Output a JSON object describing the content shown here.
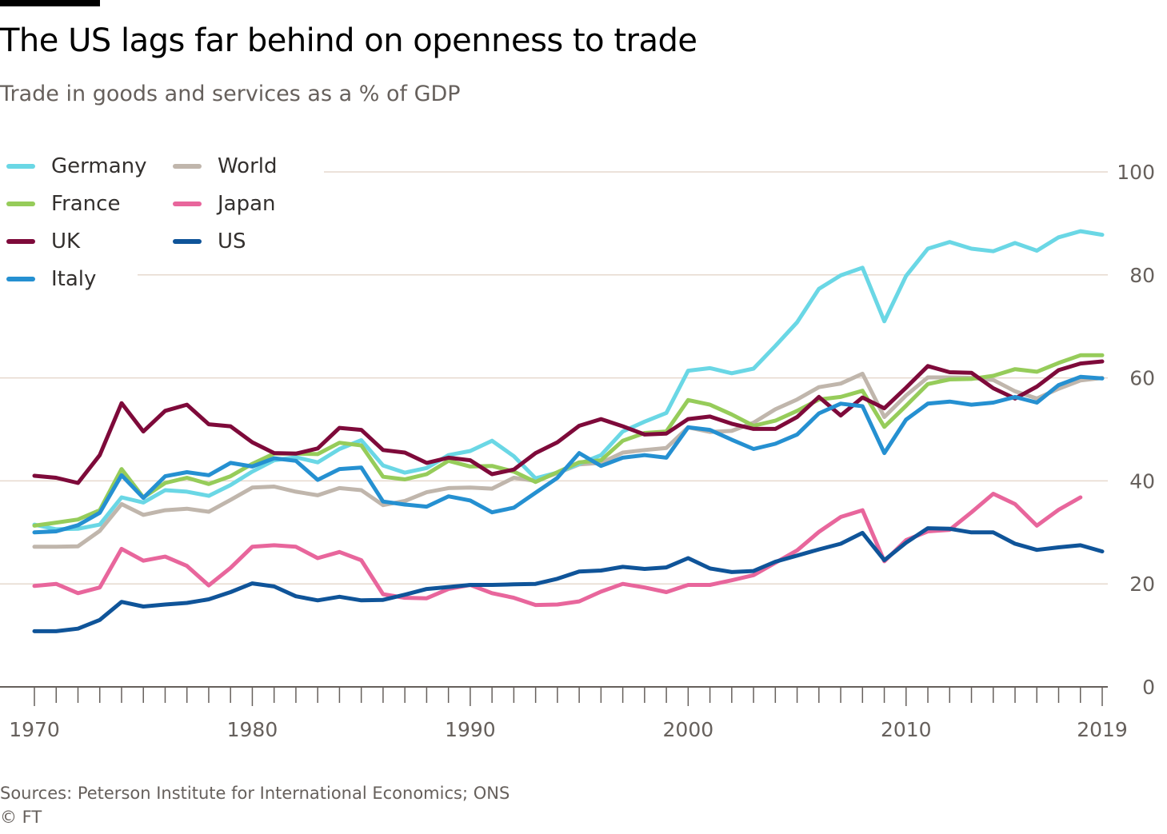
{
  "header": {
    "title": "The US lags far behind on openness to trade",
    "subtitle": "Trade in goods and services as a % of GDP"
  },
  "footer": {
    "source": "Sources: Peterson Institute for International Economics; ONS",
    "credit": "© FT"
  },
  "chart_data": {
    "type": "line",
    "title": "The US lags far behind on openness to trade",
    "subtitle": "Trade in goods and services as a % of GDP",
    "xlabel": "",
    "ylabel": "",
    "xlim": [
      1970,
      2019
    ],
    "ylim": [
      0,
      100
    ],
    "x_ticks": [
      1970,
      1980,
      1990,
      2000,
      2010,
      2019
    ],
    "y_ticks": [
      0,
      20,
      40,
      60,
      80,
      100
    ],
    "grid": true,
    "y_axis_side": "right",
    "legend_position": "top-left",
    "x": [
      1970,
      1971,
      1972,
      1973,
      1974,
      1975,
      1976,
      1977,
      1978,
      1979,
      1980,
      1981,
      1982,
      1983,
      1984,
      1985,
      1986,
      1987,
      1988,
      1989,
      1990,
      1991,
      1992,
      1993,
      1994,
      1995,
      1996,
      1997,
      1998,
      1999,
      2000,
      2001,
      2002,
      2003,
      2004,
      2005,
      2006,
      2007,
      2008,
      2009,
      2010,
      2011,
      2012,
      2013,
      2014,
      2015,
      2016,
      2017,
      2018,
      2019
    ],
    "series": [
      {
        "name": "World",
        "color": "#c0b6ac",
        "values": [
          27.2,
          27.2,
          27.3,
          30.3,
          35.5,
          33.4,
          34.3,
          34.6,
          34.0,
          36.3,
          38.7,
          38.9,
          37.9,
          37.2,
          38.6,
          38.2,
          35.3,
          36.1,
          37.8,
          38.6,
          38.7,
          38.5,
          40.6,
          40.0,
          41.5,
          43.2,
          43.5,
          45.5,
          46.0,
          46.4,
          50.4,
          49.5,
          49.7,
          51.3,
          53.9,
          55.8,
          58.2,
          58.9,
          60.8,
          52.4,
          56.6,
          60.1,
          60.1,
          60.0,
          59.6,
          57.4,
          56.0,
          57.9,
          59.5,
          60.0
        ]
      },
      {
        "name": "Germany",
        "color": "#6ad7e5",
        "values": [
          31.5,
          30.6,
          30.7,
          31.5,
          36.8,
          35.8,
          38.2,
          37.9,
          37.1,
          39.2,
          41.8,
          44.0,
          44.6,
          43.6,
          46.2,
          47.9,
          43.0,
          41.6,
          42.5,
          45.0,
          45.8,
          47.8,
          44.8,
          40.5,
          41.6,
          43.3,
          45.0,
          49.6,
          51.5,
          53.2,
          61.4,
          61.9,
          60.9,
          61.8,
          66.2,
          70.8,
          77.3,
          79.9,
          81.4,
          71.0,
          79.8,
          85.1,
          86.4,
          85.1,
          84.6,
          86.2,
          84.7,
          87.3,
          88.5,
          87.8
        ]
      },
      {
        "name": "France",
        "color": "#96cc5a",
        "values": [
          31.3,
          31.9,
          32.5,
          34.3,
          42.3,
          36.8,
          39.6,
          40.6,
          39.4,
          40.9,
          43.3,
          45.3,
          45.3,
          45.2,
          47.4,
          46.9,
          40.8,
          40.3,
          41.3,
          43.9,
          42.8,
          42.9,
          41.8,
          39.8,
          41.7,
          43.6,
          44.0,
          47.8,
          49.3,
          49.6,
          55.7,
          54.8,
          52.9,
          50.7,
          51.7,
          53.6,
          55.8,
          56.3,
          57.5,
          50.5,
          54.6,
          58.8,
          59.7,
          59.8,
          60.4,
          61.7,
          61.2,
          62.9,
          64.4,
          64.4
        ]
      },
      {
        "name": "Japan",
        "color": "#e8669c",
        "values": [
          19.6,
          20.0,
          18.2,
          19.3,
          26.8,
          24.5,
          25.3,
          23.5,
          19.7,
          23.1,
          27.2,
          27.5,
          27.2,
          25.0,
          26.2,
          24.6,
          18.0,
          17.3,
          17.2,
          19.0,
          19.8,
          18.2,
          17.3,
          15.9,
          16.0,
          16.6,
          18.5,
          20.0,
          19.3,
          18.4,
          19.8,
          19.8,
          20.7,
          21.7,
          24.1,
          26.5,
          30.1,
          33.0,
          34.3,
          24.4,
          28.5,
          30.2,
          30.5,
          33.9,
          37.5,
          35.5,
          31.3,
          34.4,
          36.8,
          null
        ]
      },
      {
        "name": "UK",
        "color": "#7e0a3a",
        "values": [
          41.0,
          40.6,
          39.6,
          45.0,
          55.1,
          49.6,
          53.6,
          54.8,
          51.0,
          50.6,
          47.5,
          45.4,
          45.3,
          46.3,
          50.3,
          49.9,
          46.0,
          45.5,
          43.5,
          44.5,
          44.0,
          41.3,
          42.2,
          45.4,
          47.5,
          50.7,
          52.0,
          50.6,
          49.0,
          49.2,
          52.0,
          52.5,
          51.1,
          50.1,
          50.1,
          52.4,
          56.3,
          52.7,
          56.2,
          54.1,
          58.1,
          62.3,
          61.1,
          61.0,
          58.0,
          56.0,
          58.3,
          61.5,
          62.8,
          63.2
        ]
      },
      {
        "name": "Italy",
        "color": "#2590d1",
        "values": [
          30.0,
          30.2,
          31.4,
          33.8,
          41.1,
          36.7,
          40.9,
          41.7,
          41.1,
          43.5,
          42.8,
          44.4,
          43.9,
          40.2,
          42.3,
          42.6,
          36.0,
          35.4,
          35.0,
          37.0,
          36.2,
          33.9,
          34.8,
          37.7,
          40.6,
          45.4,
          42.9,
          44.5,
          45.0,
          44.5,
          50.4,
          49.9,
          48.0,
          46.2,
          47.2,
          49.0,
          53.1,
          55.0,
          54.5,
          45.4,
          51.9,
          55.0,
          55.4,
          54.8,
          55.2,
          56.3,
          55.2,
          58.6,
          60.2,
          59.9
        ]
      },
      {
        "name": "US",
        "color": "#0f5499",
        "values": [
          10.8,
          10.8,
          11.3,
          13.0,
          16.5,
          15.6,
          16.0,
          16.3,
          17.0,
          18.4,
          20.1,
          19.5,
          17.6,
          16.8,
          17.5,
          16.8,
          16.9,
          17.9,
          19.0,
          19.4,
          19.8,
          19.8,
          19.9,
          20.0,
          21.0,
          22.4,
          22.6,
          23.3,
          22.9,
          23.2,
          25.0,
          23.0,
          22.3,
          22.5,
          24.3,
          25.5,
          26.7,
          27.8,
          29.9,
          24.6,
          28.0,
          30.8,
          30.7,
          30.0,
          30.0,
          27.8,
          26.6,
          27.1,
          27.5,
          26.3
        ]
      }
    ]
  },
  "legend": {
    "columns": [
      [
        "Germany",
        "France",
        "UK",
        "Italy"
      ],
      [
        "World",
        "Japan",
        "US"
      ]
    ]
  }
}
